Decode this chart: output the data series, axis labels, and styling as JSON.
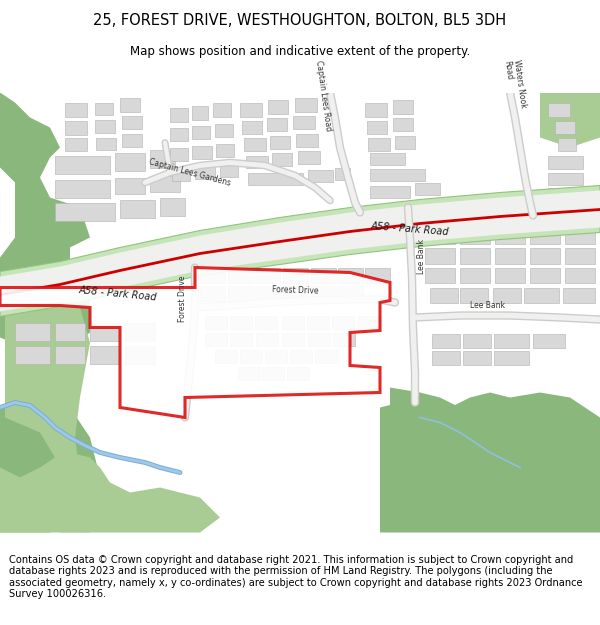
{
  "title_line1": "25, FOREST DRIVE, WESTHOUGHTON, BOLTON, BL5 3DH",
  "title_line2": "Map shows position and indicative extent of the property.",
  "footer": "Contains OS data © Crown copyright and database right 2021. This information is subject to Crown copyright and database rights 2023 and is reproduced with the permission of HM Land Registry. The polygons (including the associated geometry, namely x, y co-ordinates) are subject to Crown copyright and database rights 2023 Ordnance Survey 100026316.",
  "bg_color": "#ffffff",
  "map_bg": "#f8f8f5",
  "green1": "#8ab87c",
  "green2": "#a8cc94",
  "green3": "#c2ddb4",
  "road_green": "#c5e4b8",
  "road_green_edge": "#90c47e",
  "building_fill": "#d8d8d8",
  "building_edge": "#b0b0b0",
  "road_white": "#f5f5f5",
  "road_edge": "#cccccc",
  "plot_fill": "#ffffff",
  "plot_edge": "#dd1111",
  "water_blue": "#7ab0d4",
  "water_blue2": "#a0c8e8"
}
